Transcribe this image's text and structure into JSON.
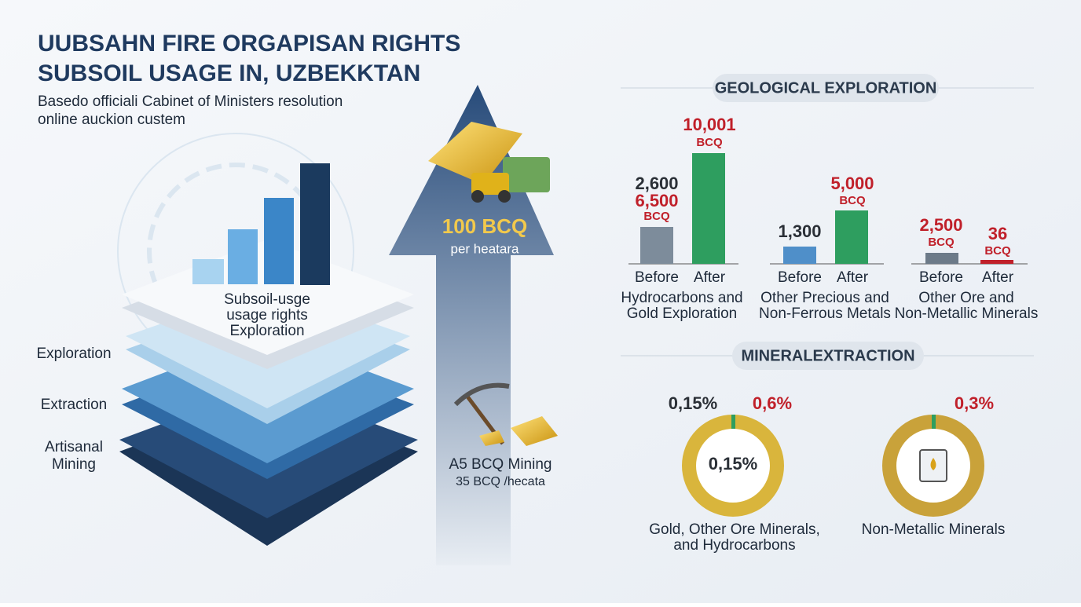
{
  "header": {
    "title_line1": "UUBSAHN FIRE ORGAPISAN RIGHTS",
    "title_line2": "SUBSOIL USAGE IN, UZBEKKTAN",
    "subtitle_line1": "Basedo  officiali Cabinet of Ministers resolution",
    "subtitle_line2": "online auckion custem"
  },
  "layers": {
    "top_label": [
      "Subsoil-usge",
      "usage rights",
      "Exploration"
    ],
    "levels": [
      "Exploration",
      "Extraction",
      "Artisanal",
      "Mining"
    ]
  },
  "arrow": {
    "price": "100 BCQ",
    "unit": "per heatara"
  },
  "mining": {
    "line1": "A5 BCQ Mining",
    "line2": "35 BCQ /hecata"
  },
  "geological_exploration": {
    "title": "GEOLOGICAL EXPLORATION",
    "before": "Before",
    "after": "After",
    "groups": [
      {
        "before_labels": [
          "2,600",
          "6,500",
          "BCQ"
        ],
        "after_labels": [
          "10,001",
          "BCQ"
        ],
        "name": [
          "Hydrocarbons and",
          "Gold Exploration"
        ]
      },
      {
        "before_labels": [
          "1,300"
        ],
        "after_labels": [
          "5,000",
          "BCQ"
        ],
        "name": [
          "Other Precious and",
          "Non-Ferrous Metals"
        ]
      },
      {
        "before_labels": [
          "2,500",
          "BCQ"
        ],
        "after_labels": [
          "36",
          "BCQ"
        ],
        "name": [
          "Other Ore and",
          "Non-Metallic Minerals"
        ]
      }
    ]
  },
  "mineral_extraction": {
    "title": "MINERALEXTRACTION",
    "donuts": [
      {
        "left": "0,15%",
        "right": "0,6%",
        "center": "0,15%",
        "name": [
          "Gold, Other Ore Minerals,",
          "and Hydrocarbons"
        ]
      },
      {
        "right": "0,3%",
        "name": [
          "Non-Metallic Minerals"
        ]
      }
    ]
  }
}
